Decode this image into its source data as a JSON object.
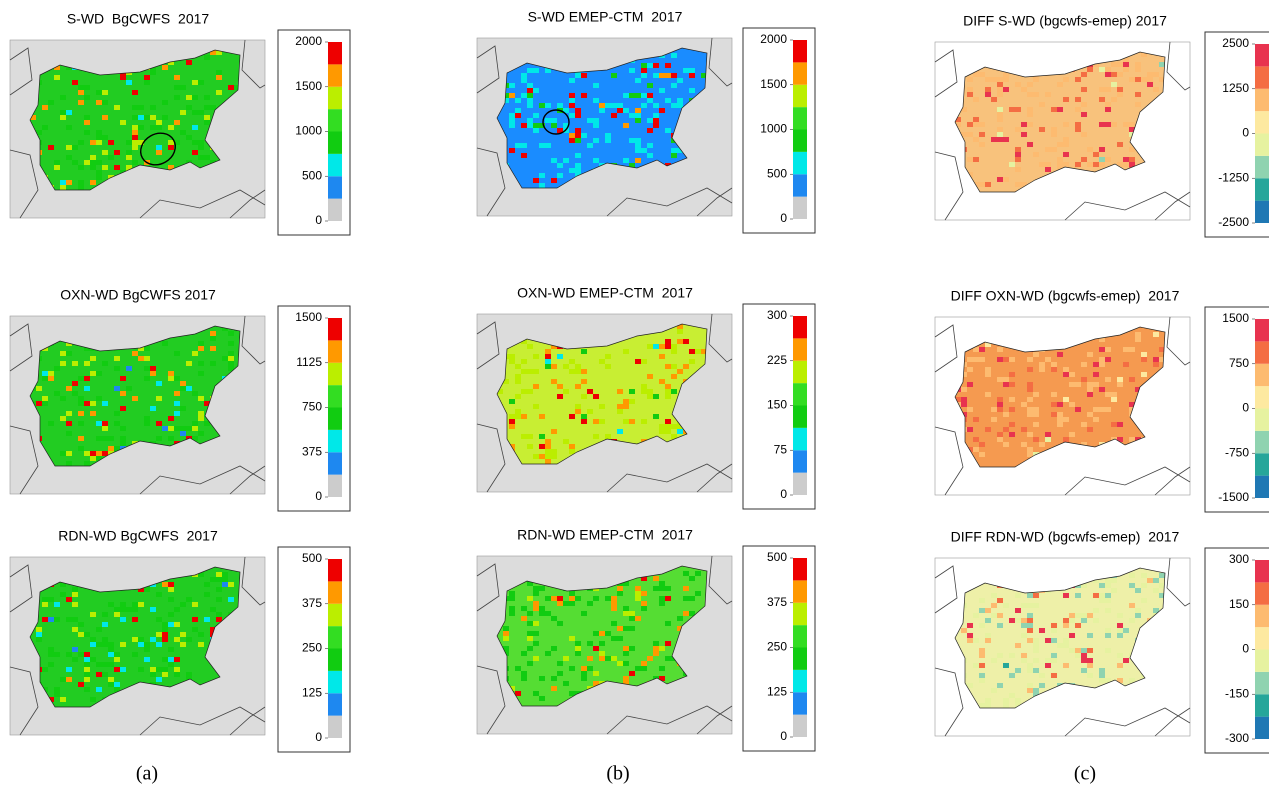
{
  "columns": [
    {
      "label": "(a)",
      "panels": [
        {
          "title": "S-WD  BgCWFS  2017",
          "ticks": [
            0,
            500,
            1000,
            1500,
            2000
          ],
          "colors": [
            "#cccccc",
            "#1e88f0",
            "#00e8e8",
            "#11cc11",
            "#33dd22",
            "#bbee00",
            "#ff9900",
            "#ee0000"
          ],
          "map_color": "#22cc22",
          "background": "#dcdcdc"
        },
        {
          "title": "OXN-WD BgCWFS 2017",
          "ticks": [
            0,
            375,
            750,
            1125,
            1500
          ],
          "colors": [
            "#cccccc",
            "#1e88f0",
            "#00e8e8",
            "#11cc11",
            "#33dd22",
            "#bbee00",
            "#ff9900",
            "#ee0000"
          ],
          "map_color": "#22cc22",
          "background": "#dcdcdc"
        },
        {
          "title": "RDN-WD BgCWFS  2017",
          "ticks": [
            0,
            125,
            250,
            375,
            500
          ],
          "colors": [
            "#cccccc",
            "#1e88f0",
            "#00e8e8",
            "#11cc11",
            "#33dd22",
            "#bbee00",
            "#ff9900",
            "#ee0000"
          ],
          "map_color": "#22cc22",
          "background": "#dcdcdc"
        }
      ]
    },
    {
      "label": "(b)",
      "panels": [
        {
          "title": "S-WD EMEP-CTM  2017",
          "ticks": [
            0,
            500,
            1000,
            1500,
            2000
          ],
          "colors": [
            "#cccccc",
            "#1e88f0",
            "#00e8e8",
            "#11cc11",
            "#33dd22",
            "#bbee00",
            "#ff9900",
            "#ee0000"
          ],
          "map_color": "#1a8cff",
          "background": "#dcdcdc"
        },
        {
          "title": "OXN-WD EMEP-CTM  2017",
          "ticks": [
            0,
            75,
            150,
            225,
            300
          ],
          "colors": [
            "#cccccc",
            "#1e88f0",
            "#00e8e8",
            "#11cc11",
            "#33dd22",
            "#bbee00",
            "#ff9900",
            "#ee0000"
          ],
          "map_color": "#c8ee33",
          "background": "#dcdcdc"
        },
        {
          "title": "RDN-WD EMEP-CTM  2017",
          "ticks": [
            0,
            125,
            250,
            375,
            500
          ],
          "colors": [
            "#cccccc",
            "#1e88f0",
            "#00e8e8",
            "#11cc11",
            "#33dd22",
            "#bbee00",
            "#ff9900",
            "#ee0000"
          ],
          "map_color": "#55dd33",
          "background": "#dcdcdc"
        }
      ]
    },
    {
      "label": "(c)",
      "panels": [
        {
          "title": "DIFF S-WD (bgcwfs-emep) 2017",
          "ticks": [
            -2500,
            -1250,
            0,
            1250,
            2500
          ],
          "colors": [
            "#1f78b4",
            "#26a69a",
            "#8fd3b0",
            "#e6f2a0",
            "#fde9a0",
            "#fdbb70",
            "#f46d43",
            "#e8334f"
          ],
          "map_color": "#f8c27c",
          "background": "#ffffff"
        },
        {
          "title": "DIFF OXN-WD (bgcwfs-emep)  2017",
          "ticks": [
            -1500,
            -750,
            0,
            750,
            1500
          ],
          "colors": [
            "#1f78b4",
            "#26a69a",
            "#8fd3b0",
            "#e6f2a0",
            "#fde9a0",
            "#fdbb70",
            "#f46d43",
            "#e8334f"
          ],
          "map_color": "#f59a50",
          "background": "#ffffff"
        },
        {
          "title": "DIFF RDN-WD (bgcwfs-emep)  2017",
          "ticks": [
            -300,
            -150,
            0,
            150,
            300
          ],
          "colors": [
            "#1f78b4",
            "#26a69a",
            "#8fd3b0",
            "#e6f2a0",
            "#fde9a0",
            "#fdbb70",
            "#f46d43",
            "#e8334f"
          ],
          "map_color": "#eef0a8",
          "background": "#ffffff"
        }
      ]
    }
  ]
}
